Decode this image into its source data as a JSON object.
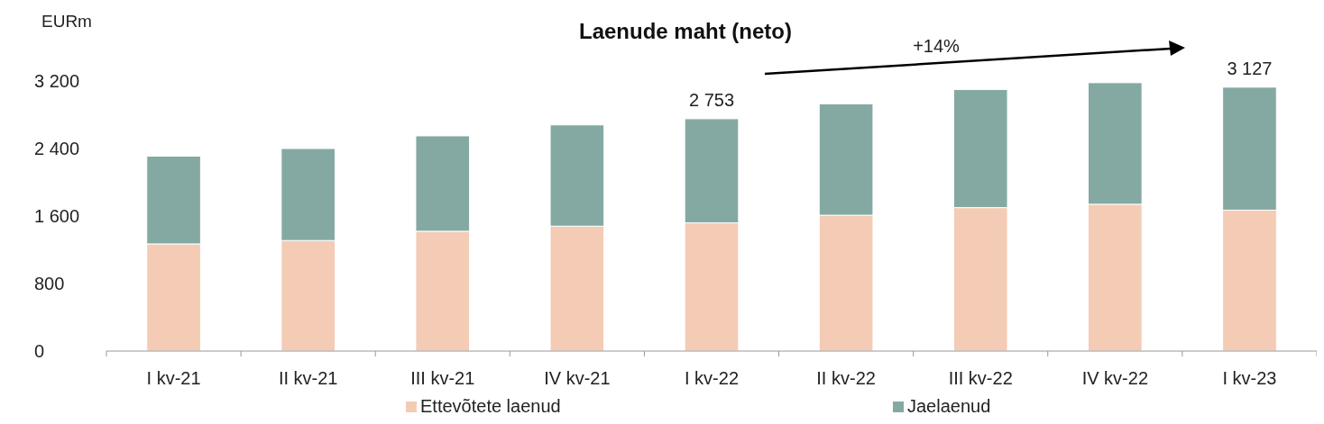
{
  "chart_data": {
    "type": "bar",
    "title": "Laenude maht (neto)",
    "ylabel": "EURm",
    "stacked": true,
    "categories": [
      "I kv-21",
      "II kv-21",
      "III kv-21",
      "IV kv-21",
      "I kv-22",
      "II kv-22",
      "III kv-22",
      "IV kv-22",
      "I kv-23"
    ],
    "series": [
      {
        "name": "Ettevõtete laenud",
        "color": "#f4cbb4",
        "values": [
          1270,
          1310,
          1420,
          1480,
          1520,
          1610,
          1700,
          1740,
          1670
        ]
      },
      {
        "name": "Jaelaenud",
        "color": "#84a9a3",
        "values": [
          1040,
          1090,
          1130,
          1200,
          1233,
          1320,
          1400,
          1440,
          1457
        ]
      }
    ],
    "totals": [
      null,
      null,
      null,
      null,
      "2 753",
      null,
      null,
      null,
      "3 127"
    ],
    "annotations": [
      "+14%"
    ],
    "ylim": [
      0,
      3200
    ],
    "yticks": [
      0,
      800,
      {
        "value": 1600,
        "label": "1 600"
      },
      {
        "value": 2400,
        "label": "2 400"
      },
      {
        "value": 3200,
        "label": "3 200"
      }
    ],
    "grid": false,
    "legend": "bottom"
  }
}
